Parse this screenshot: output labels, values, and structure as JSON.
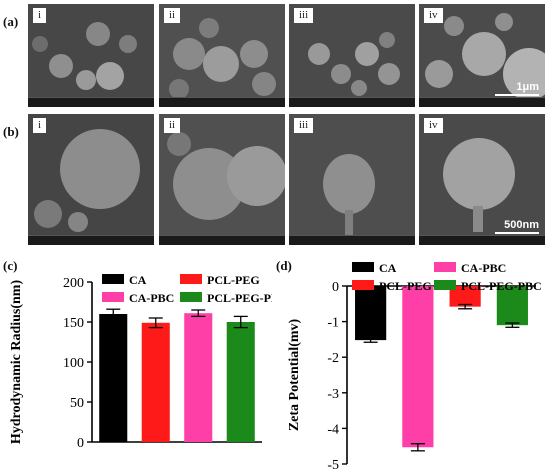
{
  "figure": {
    "row_a_label": "(a)",
    "row_b_label": "(b)",
    "panel_c_label": "(c)",
    "panel_d_label": "(d)",
    "row_a_tags": [
      "i",
      "ii",
      "iii",
      "iv"
    ],
    "row_b_tags": [
      "i",
      "ii",
      "iii",
      "iv"
    ],
    "scale_a": "1μm",
    "scale_b": "500nm"
  },
  "colors": {
    "CA": "#000000",
    "PCL-PEG": "#ff1a1a",
    "CA-PBC": "#ff3fa8",
    "PCL-PEG-PBC": "#1b8a1b"
  },
  "chart_data": [
    {
      "type": "bar",
      "categories": [
        "CA",
        "PCL-PEG",
        "CA-PBC",
        "PCL-PEG-PBC"
      ],
      "values": [
        160,
        149,
        161,
        150
      ],
      "errors": [
        6,
        6,
        4,
        7
      ],
      "ylabel": "Hydrodynamic Radius(nm)",
      "ylim": [
        0,
        200
      ],
      "yticks": [
        0,
        50,
        100,
        150,
        200
      ],
      "legend": [
        "CA",
        "PCL-PEG",
        "CA-PBC",
        "PCL-PEG-PBC"
      ],
      "legend_position": "top"
    },
    {
      "type": "bar",
      "categories": [
        "CA",
        "CA-PBC",
        "PCL-PEG",
        "PCL-PEG-PBC"
      ],
      "values": [
        -1.52,
        -4.53,
        -0.58,
        -1.1
      ],
      "errors": [
        0.06,
        0.1,
        0.06,
        0.06
      ],
      "ylabel": "Zeta Potential(mv)",
      "ylim": [
        -5,
        0
      ],
      "yticks": [
        0,
        -1,
        -2,
        -3,
        -4,
        -5
      ],
      "legend": [
        "CA",
        "CA-PBC",
        "PCL-PEG",
        "PCL-PEG-PBC"
      ],
      "legend_position": "top"
    }
  ]
}
